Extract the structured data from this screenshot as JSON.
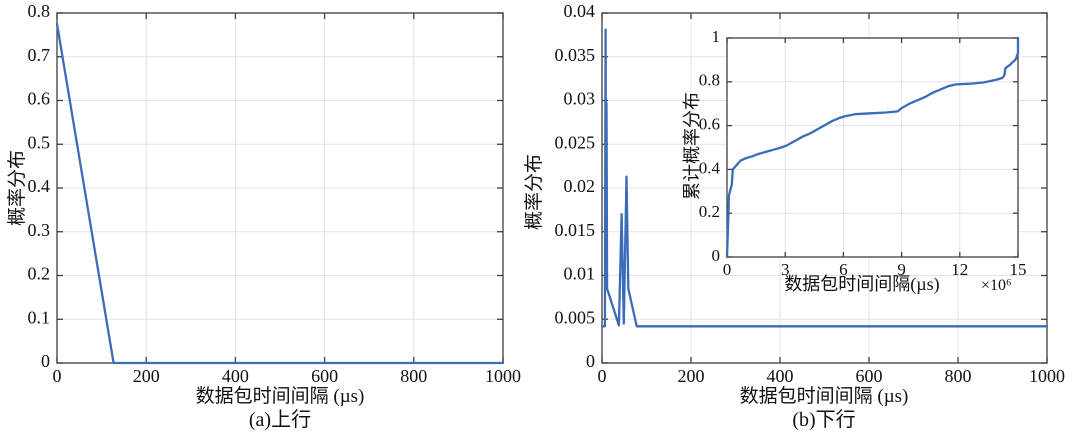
{
  "style": {
    "background": "#ffffff",
    "line_color": "#3a6cba",
    "grid_color": "#e3e3e3",
    "axis_color": "#3f3f3f",
    "text_color": "#111111"
  },
  "chart_data": [
    {
      "id": "uplink-pdf",
      "type": "line",
      "title": "(a)上行",
      "xlabel": "数据包时间间隔 (µs)",
      "ylabel": "概率分布",
      "xlim": [
        0,
        1000
      ],
      "ylim": [
        0,
        0.8
      ],
      "xticks": [
        0,
        200,
        400,
        600,
        800,
        1000
      ],
      "xtick_labels": [
        "0",
        "200",
        "400",
        "600",
        "800",
        "1000"
      ],
      "yticks": [
        0,
        0.1,
        0.2,
        0.3,
        0.4,
        0.5,
        0.6,
        0.7,
        0.8
      ],
      "ytick_labels": [
        "0",
        "0.1",
        "0.2",
        "0.3",
        "0.4",
        "0.5",
        "0.6",
        "0.7",
        "0.8"
      ],
      "grid": true,
      "legend": "none",
      "points": [
        [
          0,
          0.775
        ],
        [
          127,
          0
        ],
        [
          1000,
          0
        ]
      ]
    },
    {
      "id": "downlink-pdf",
      "type": "line",
      "title": "(b)下行",
      "xlabel": "数据包时间间隔 (µs)",
      "ylabel": "概率分布",
      "xlim": [
        0,
        1000
      ],
      "ylim": [
        0,
        0.04
      ],
      "xticks": [
        0,
        200,
        400,
        600,
        800,
        1000
      ],
      "xtick_labels": [
        "0",
        "200",
        "400",
        "600",
        "800",
        "1000"
      ],
      "yticks": [
        0,
        0.005,
        0.01,
        0.015,
        0.02,
        0.025,
        0.03,
        0.035,
        0.04
      ],
      "ytick_labels": [
        "0",
        "0.005",
        "0.01",
        "0.015",
        "0.02",
        "0.025",
        "0.03",
        "0.035",
        "0.04"
      ],
      "grid": true,
      "legend": "none",
      "points": [
        [
          3,
          0.0042
        ],
        [
          6.5,
          0.0042
        ],
        [
          8,
          0.0381
        ],
        [
          9,
          0.012
        ],
        [
          10,
          0.0297
        ],
        [
          11.5,
          0.0085
        ],
        [
          38,
          0.0043
        ],
        [
          44,
          0.017
        ],
        [
          49,
          0.0045
        ],
        [
          55,
          0.0213
        ],
        [
          59,
          0.0085
        ],
        [
          78,
          0.0042
        ],
        [
          1000,
          0.0042
        ]
      ]
    },
    {
      "id": "downlink-cdf-inset",
      "type": "line",
      "title": "",
      "xlabel": "数据包时间间隔(µs)",
      "ylabel": "累计概率分布",
      "x_scale_label": "×10⁶",
      "xlim": [
        0,
        15
      ],
      "ylim": [
        0,
        1
      ],
      "xticks": [
        0,
        3,
        6,
        9,
        12,
        15
      ],
      "xtick_labels": [
        "0",
        "3",
        "6",
        "9",
        "12",
        "15"
      ],
      "yticks": [
        0,
        0.2,
        0.4,
        0.6,
        0.8,
        1
      ],
      "ytick_labels": [
        "0",
        "0.2",
        "0.4",
        "0.6",
        "0.8",
        "1"
      ],
      "grid": true,
      "legend": "none",
      "points": [
        [
          0,
          0
        ],
        [
          0.08,
          0.22
        ],
        [
          0.1,
          0.28
        ],
        [
          0.18,
          0.31
        ],
        [
          0.25,
          0.33
        ],
        [
          0.3,
          0.4
        ],
        [
          0.5,
          0.42
        ],
        [
          0.7,
          0.44
        ],
        [
          0.95,
          0.45
        ],
        [
          1.3,
          0.46
        ],
        [
          1.6,
          0.47
        ],
        [
          2.0,
          0.48
        ],
        [
          2.4,
          0.49
        ],
        [
          2.8,
          0.5
        ],
        [
          3.1,
          0.51
        ],
        [
          3.4,
          0.525
        ],
        [
          3.7,
          0.54
        ],
        [
          3.9,
          0.55
        ],
        [
          4.3,
          0.565
        ],
        [
          4.7,
          0.585
        ],
        [
          5.0,
          0.6
        ],
        [
          5.4,
          0.62
        ],
        [
          5.8,
          0.635
        ],
        [
          6.2,
          0.645
        ],
        [
          6.6,
          0.652
        ],
        [
          7.4,
          0.656
        ],
        [
          8.2,
          0.66
        ],
        [
          8.8,
          0.665
        ],
        [
          9.0,
          0.68
        ],
        [
          9.4,
          0.7
        ],
        [
          9.8,
          0.715
        ],
        [
          10.2,
          0.73
        ],
        [
          10.6,
          0.75
        ],
        [
          11.0,
          0.765
        ],
        [
          11.4,
          0.78
        ],
        [
          11.8,
          0.788
        ],
        [
          12.6,
          0.792
        ],
        [
          13.2,
          0.797
        ],
        [
          13.5,
          0.802
        ],
        [
          13.9,
          0.81
        ],
        [
          14.2,
          0.818
        ],
        [
          14.3,
          0.83
        ],
        [
          14.35,
          0.862
        ],
        [
          14.5,
          0.872
        ],
        [
          14.6,
          0.878
        ],
        [
          14.7,
          0.888
        ],
        [
          14.8,
          0.895
        ],
        [
          14.9,
          0.905
        ],
        [
          14.95,
          0.92
        ],
        [
          15,
          0.93
        ],
        [
          15,
          1.0
        ]
      ]
    }
  ]
}
